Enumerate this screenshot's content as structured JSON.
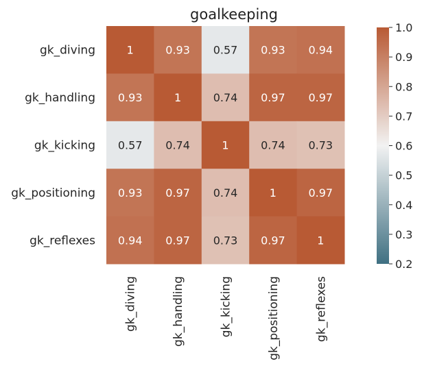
{
  "chart_data": {
    "type": "heatmap",
    "title": "goalkeeping",
    "row_labels": [
      "gk_diving",
      "gk_handling",
      "gk_kicking",
      "gk_positioning",
      "gk_reflexes"
    ],
    "col_labels": [
      "gk_diving",
      "gk_handling",
      "gk_kicking",
      "gk_positioning",
      "gk_reflexes"
    ],
    "values": [
      [
        1,
        0.93,
        0.57,
        0.93,
        0.94
      ],
      [
        0.93,
        1,
        0.74,
        0.97,
        0.97
      ],
      [
        0.57,
        0.74,
        1,
        0.74,
        0.73
      ],
      [
        0.93,
        0.97,
        0.74,
        1,
        0.97
      ],
      [
        0.94,
        0.97,
        0.73,
        0.97,
        1
      ]
    ],
    "value_labels": [
      [
        "1",
        "0.93",
        "0.57",
        "0.93",
        "0.94"
      ],
      [
        "0.93",
        "1",
        "0.74",
        "0.97",
        "0.97"
      ],
      [
        "0.57",
        "0.74",
        "1",
        "0.74",
        "0.73"
      ],
      [
        "0.93",
        "0.97",
        "0.74",
        "1",
        "0.97"
      ],
      [
        "0.94",
        "0.97",
        "0.73",
        "0.97",
        "1"
      ]
    ],
    "colorbar": {
      "range": [
        0.2,
        1.0
      ],
      "ticks": [
        "0.2",
        "0.3",
        "0.4",
        "0.5",
        "0.6",
        "0.7",
        "0.8",
        "0.9",
        "1.0"
      ],
      "colormap": "diverging",
      "colors": {
        "low": "#3f7082",
        "mid": "#f2f2f2",
        "high": "#b85a34"
      }
    }
  }
}
